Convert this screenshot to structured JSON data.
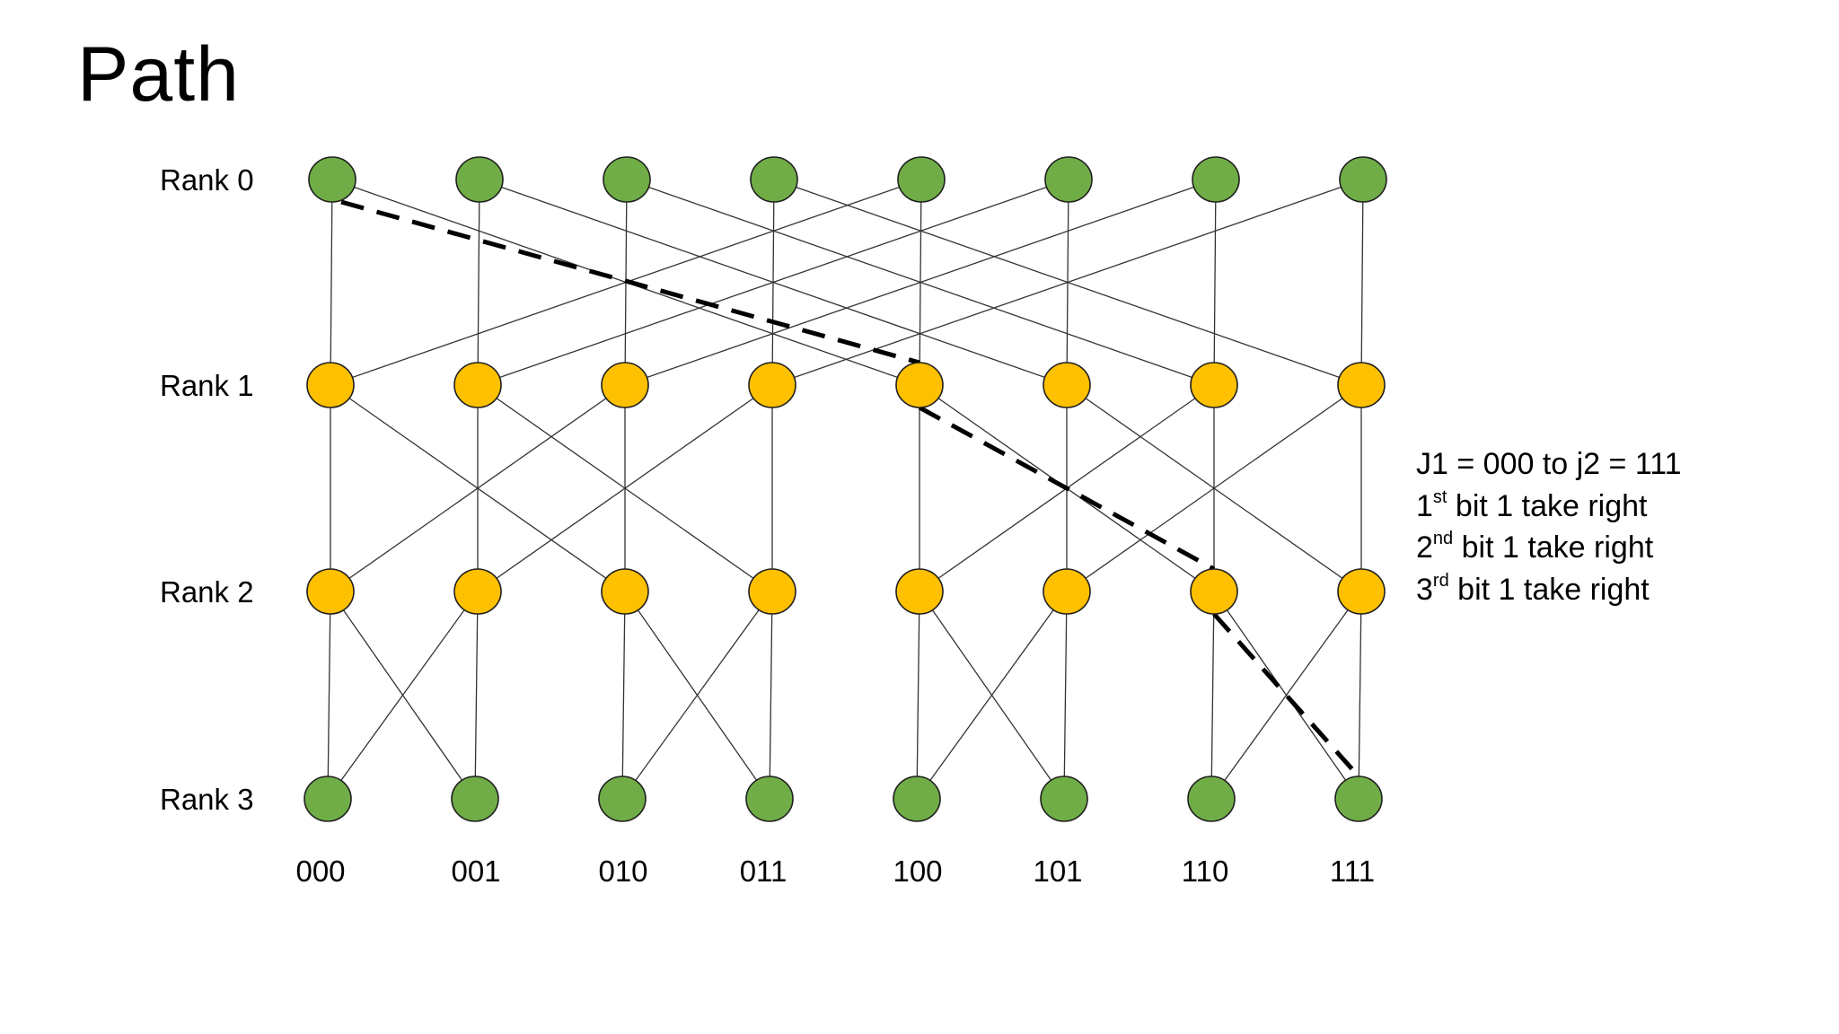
{
  "title": "Path",
  "colors": {
    "end_node": "#70ad47",
    "middle_node": "#ffc000",
    "edge": "#333333",
    "path": "#000000"
  },
  "ranks": [
    {
      "label": "Rank 0",
      "node_color": "#70ad47"
    },
    {
      "label": "Rank 1",
      "node_color": "#ffc000"
    },
    {
      "label": "Rank 2",
      "node_color": "#ffc000"
    },
    {
      "label": "Rank 3",
      "node_color": "#70ad47"
    }
  ],
  "columns": [
    "000",
    "001",
    "010",
    "011",
    "100",
    "101",
    "110",
    "111"
  ],
  "stage_strides": [
    4,
    2,
    1
  ],
  "highlighted_path": [
    0,
    4,
    6,
    7
  ],
  "notes": [
    {
      "text": "J1 = 000 to j2 = 111",
      "sup": "",
      "rest": ""
    },
    {
      "text": "1",
      "sup": "st",
      "rest": " bit 1 take right"
    },
    {
      "text": "2",
      "sup": "nd",
      "rest": " bit 1 take right"
    },
    {
      "text": "3",
      "sup": "rd",
      "rest": " bit 1 take right"
    }
  ]
}
